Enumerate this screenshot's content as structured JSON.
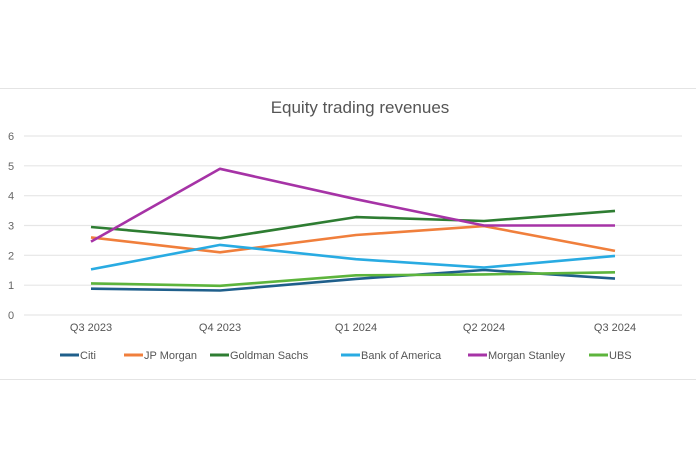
{
  "chart_data": {
    "type": "line",
    "title": "Equity trading revenues",
    "xlabel": "",
    "ylabel": "",
    "categories": [
      "Q3 2023",
      "Q4 2023",
      "Q1 2024",
      "Q2 2024",
      "Q3 2024"
    ],
    "ylim": [
      0,
      6
    ],
    "yticks": [
      0,
      1,
      2,
      3,
      4,
      5,
      6
    ],
    "grid": true,
    "legend": "bottom",
    "series": [
      {
        "name": "Citi",
        "color": "#1f5f8b",
        "values": [
          0.88,
          0.82,
          1.21,
          1.51,
          1.22
        ]
      },
      {
        "name": "JP Morgan",
        "color": "#f07f3c",
        "values": [
          2.6,
          2.1,
          2.68,
          2.98,
          2.15
        ]
      },
      {
        "name": "Goldman Sachs",
        "color": "#2e7d32",
        "values": [
          2.95,
          2.57,
          3.28,
          3.15,
          3.49
        ]
      },
      {
        "name": "Bank of America",
        "color": "#29abe2",
        "values": [
          1.53,
          2.35,
          1.87,
          1.59,
          1.98
        ]
      },
      {
        "name": "Morgan Stanley",
        "color": "#a633a6",
        "values": [
          2.46,
          4.9,
          3.88,
          3.0,
          3.0
        ]
      },
      {
        "name": "UBS",
        "color": "#5db43c",
        "values": [
          1.06,
          0.98,
          1.33,
          1.36,
          1.43
        ]
      }
    ]
  }
}
